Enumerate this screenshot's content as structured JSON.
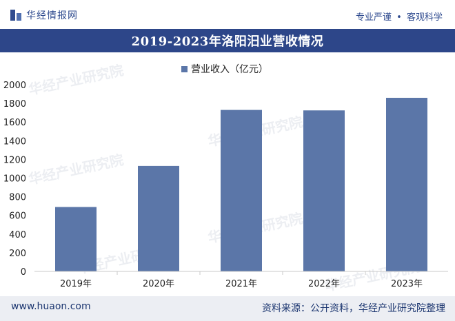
{
  "header": {
    "logo_text": "华经情报网",
    "slogan_left": "专业严谨",
    "slogan_sep": "•",
    "slogan_right": "客观科学"
  },
  "title": "2019-2023年洛阳汨业营收情况",
  "watermark_text": "华经产业研究院",
  "footer": {
    "website": "www.huaon.com",
    "source": "资料来源：公开资料，华经产业研究院整理"
  },
  "colors": {
    "bar": "#5b76a8",
    "title_bg": "#2d4689",
    "footer_bg": "#eceef3"
  },
  "chart_data": {
    "type": "bar",
    "title": "2019-2023年洛阳汨业营收情况",
    "categories": [
      "2019年",
      "2020年",
      "2021年",
      "2022年",
      "2023年"
    ],
    "series": [
      {
        "name": "营业收入（亿元）",
        "values": [
          690,
          1130,
          1730,
          1725,
          1860
        ]
      }
    ],
    "ylim": [
      0,
      2000
    ],
    "yticks": [
      0,
      200,
      400,
      600,
      800,
      1000,
      1200,
      1400,
      1600,
      1800,
      2000
    ],
    "xlabel": "",
    "ylabel": "",
    "legend_position": "top-center",
    "grid": false
  }
}
